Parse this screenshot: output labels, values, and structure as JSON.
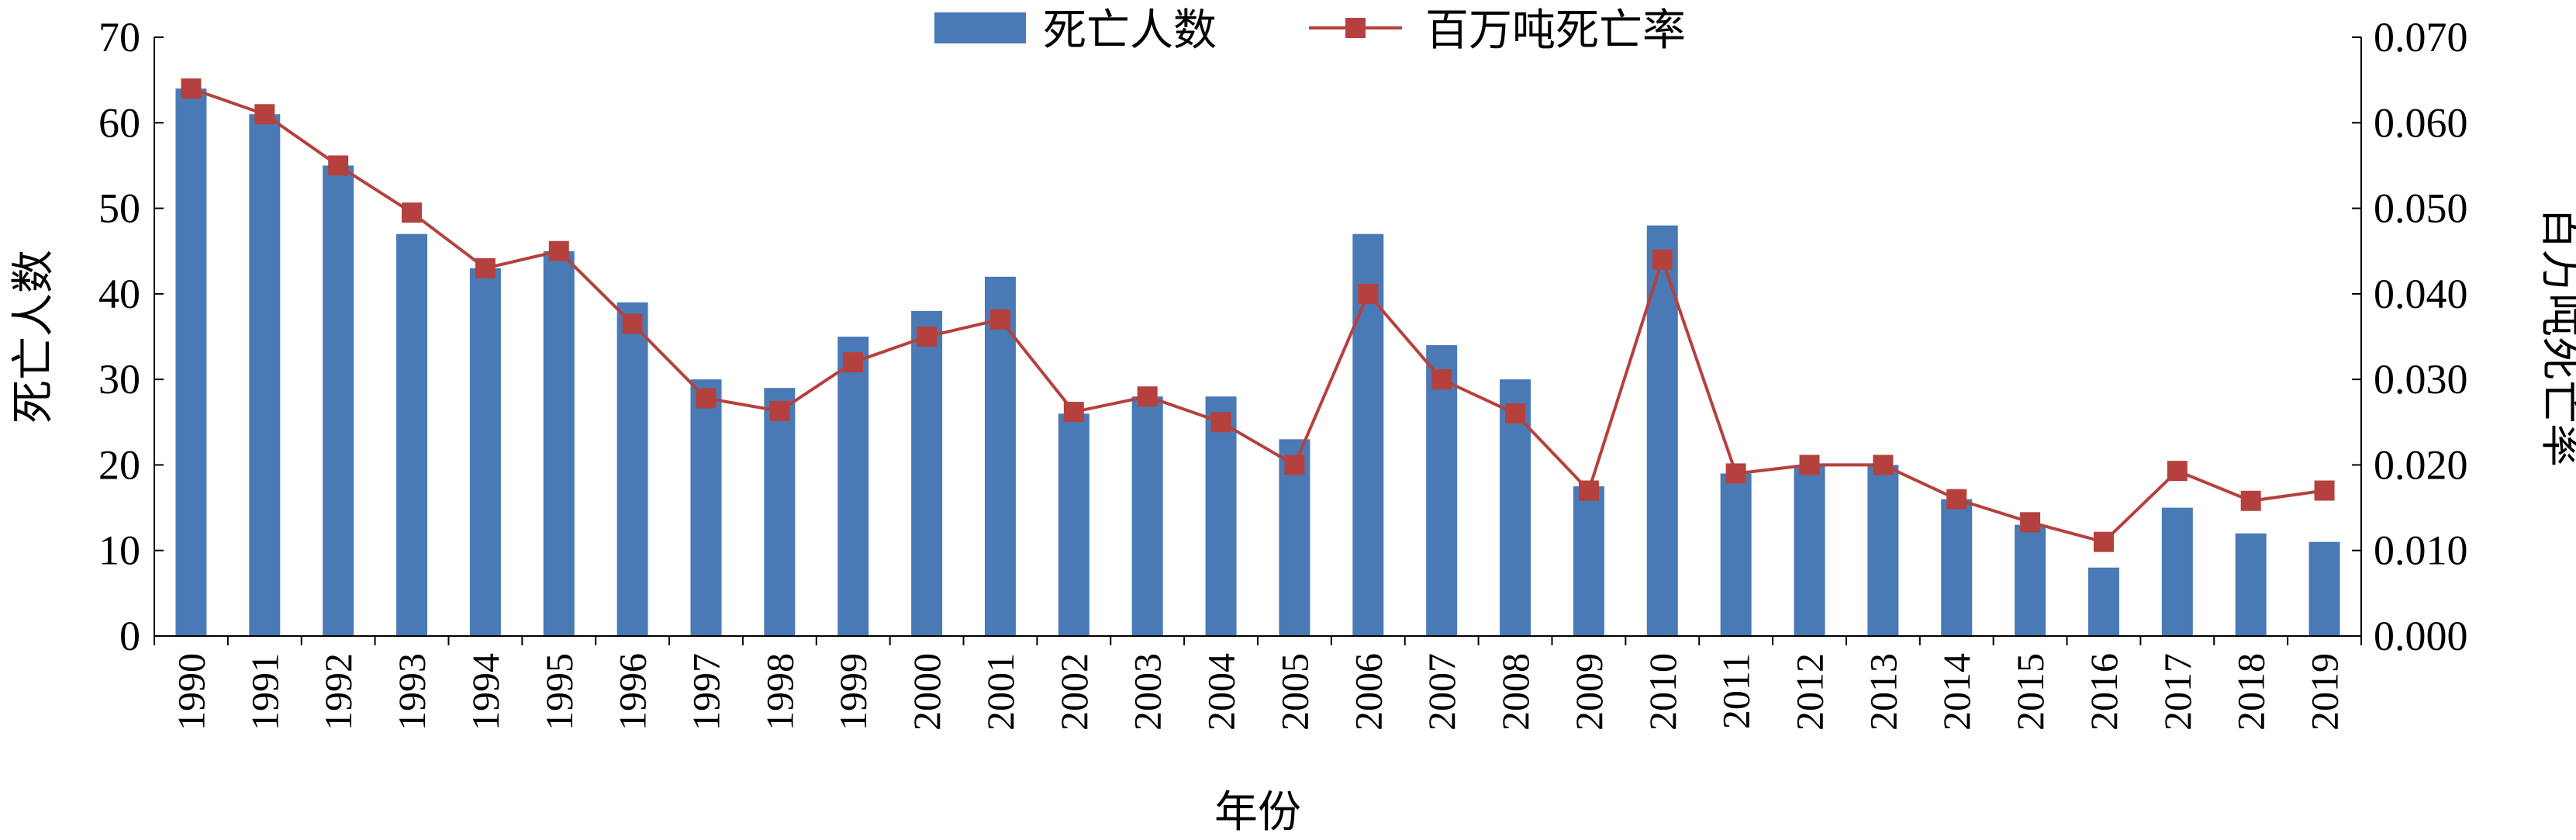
{
  "chart_data": {
    "type": "bar",
    "categories": [
      "1990",
      "1991",
      "1992",
      "1993",
      "1994",
      "1995",
      "1996",
      "1997",
      "1998",
      "1999",
      "2000",
      "2001",
      "2002",
      "2003",
      "2004",
      "2005",
      "2006",
      "2007",
      "2008",
      "2009",
      "2010",
      "2011",
      "2012",
      "2013",
      "2014",
      "2015",
      "2016",
      "2017",
      "2018",
      "2019"
    ],
    "series": [
      {
        "name": "死亡人数",
        "type": "bar",
        "axis": "left",
        "color": "#4a7ab5",
        "values": [
          64,
          61,
          55,
          47,
          43,
          45,
          39,
          30,
          29,
          35,
          38,
          42,
          26,
          28,
          28,
          23,
          47,
          34,
          30,
          17.5,
          48,
          19,
          20,
          20,
          16,
          13,
          8,
          15,
          12,
          11
        ]
      },
      {
        "name": "百万吨死亡率",
        "type": "line",
        "axis": "right",
        "color": "#b5413e",
        "values": [
          0.064,
          0.061,
          0.055,
          0.0495,
          0.043,
          0.045,
          0.0365,
          0.0278,
          0.0263,
          0.032,
          0.035,
          0.037,
          0.0262,
          0.028,
          0.025,
          0.02,
          0.04,
          0.03,
          0.026,
          0.017,
          0.044,
          0.019,
          0.02,
          0.02,
          0.016,
          0.0133,
          0.011,
          0.0193,
          0.0158,
          0.017
        ]
      }
    ],
    "xlabel": "年份",
    "ylabel": "死亡人数",
    "y2label": "百万吨死亡率",
    "ylim": [
      0,
      70
    ],
    "y2lim": [
      0,
      0.07
    ],
    "yticks": [
      "0",
      "10",
      "20",
      "30",
      "40",
      "50",
      "60",
      "70"
    ],
    "y2ticks": [
      "0.000",
      "0.010",
      "0.020",
      "0.030",
      "0.040",
      "0.050",
      "0.060",
      "0.070"
    ],
    "legend_position": "top-center",
    "grid": false
  }
}
